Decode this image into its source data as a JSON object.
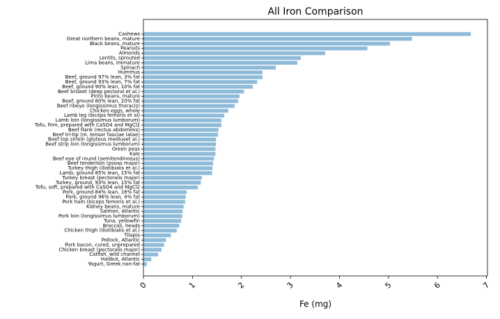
{
  "chart_data": {
    "type": "barh",
    "title": "All Iron Comparison",
    "x_label": "Fe (mg)",
    "color": "#8fbbd9",
    "categories": [
      "Cashews",
      "Great northern beans, mature",
      "Black beans, mature",
      "Peanuts",
      "Almonds",
      "Lentils, sprouted",
      "Lima beans, immature",
      "Spinach",
      "Hummus",
      "Beef, ground 97% lean, 3% fat",
      "Beef, ground 93% lean, 7% fat",
      "Beef, ground 90% lean, 10% fat",
      "Beef brisket (deep pectoral et al.)",
      "Pinto beans, mature",
      "Beef, ground 80% lean, 20% fat",
      "Beef ribeye (longissimus thoracis)",
      "Chicken eggs, whole",
      "Lamb leg (biceps femoris et al)",
      "Lamb loin (longissimus lumborum)",
      "Tofu, firm, prepared with CaSO4 and MgCl2",
      "Beef flank (rectus abdominis)",
      "Beef tri-tip (m. tensor fasciae latae)",
      "Beef top sirloin (gluteus mediuset al.)",
      "Beef strip loin (longissimus lumborum)",
      "Green peas",
      "Kale",
      "Beef eye of round (semitendinosus)",
      "Beef tenderloin (psoas major)",
      "Turkey thigh (iliotibialis et al.)",
      "Lamb, ground 85% lean, 15% fat",
      "Turkey breast (pectoralis major)",
      "Turkey, ground, 93% lean, 15% fat",
      "Tofu, soft, prepared with CaSO4 and MgCl2",
      "Pork, ground 84% lean, 16% fat",
      "Pork, ground 96% lean, 4% fat",
      "Pork ham (biceps femoris et al.)",
      "Kidney beans, mature",
      "Salmon, Atlantic",
      "Pork loin (longissimus lumborum)",
      "Tuna, yellowfin",
      "Broccoli, heads",
      "Chicken thigh (iliotibialis et al.)",
      "Tilapia",
      "Pollock, Atlantic",
      "Pork bacon, cured, unprepared",
      "Chicken breast (pectoralis major)",
      "Catfish, wild channel",
      "Halibut, Atlantic",
      "Yogurt, Greek non-fat"
    ],
    "values": [
      6.68,
      5.48,
      5.03,
      4.57,
      3.71,
      3.21,
      3.14,
      2.7,
      2.43,
      2.43,
      2.32,
      2.23,
      2.05,
      1.96,
      1.93,
      1.86,
      1.73,
      1.65,
      1.59,
      1.59,
      1.53,
      1.52,
      1.48,
      1.48,
      1.47,
      1.47,
      1.44,
      1.42,
      1.41,
      1.4,
      1.19,
      1.17,
      1.11,
      0.88,
      0.86,
      0.85,
      0.82,
      0.8,
      0.79,
      0.77,
      0.73,
      0.68,
      0.56,
      0.46,
      0.42,
      0.37,
      0.3,
      0.16,
      0.07
    ],
    "xlim": [
      0,
      7.02
    ],
    "xticks": [
      0,
      1,
      2,
      3,
      4,
      5,
      6,
      7
    ]
  }
}
